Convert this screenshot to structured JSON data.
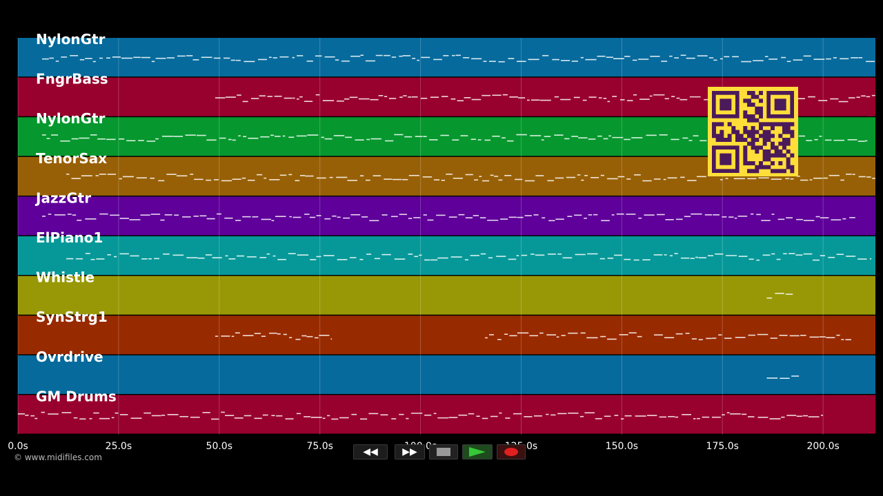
{
  "tracks": [
    {
      "name": "NylonGtr",
      "color": "#066a9c"
    },
    {
      "name": "FngrBass",
      "color": "#98002e"
    },
    {
      "name": "NylonGtr",
      "color": "#06982e"
    },
    {
      "name": "TenorSax",
      "color": "#986006"
    },
    {
      "name": "JazzGtr",
      "color": "#5e0099"
    },
    {
      "name": "ElPiano1",
      "color": "#069898"
    },
    {
      "name": "Whistle",
      "color": "#989806"
    },
    {
      "name": "SynStrg1",
      "color": "#982a00"
    },
    {
      "name": "Ovrdrive",
      "color": "#066a9c"
    },
    {
      "name": "GM Drums",
      "color": "#98002e"
    }
  ],
  "timeline": {
    "ticks": [
      "0.0s",
      "25.0s",
      "50.0s",
      "75.0s",
      "100.0s",
      "125.0s",
      "150.0s",
      "175.0s",
      "200.0s"
    ],
    "tick_seconds": [
      0,
      25,
      50,
      75,
      100,
      125,
      150,
      175,
      200
    ],
    "end_seconds": 213
  },
  "notes_activity": [
    [
      [
        6,
        213
      ]
    ],
    [
      [
        49,
        213
      ]
    ],
    [
      [
        6,
        211
      ]
    ],
    [
      [
        12,
        213
      ]
    ],
    [
      [
        6,
        208
      ]
    ],
    [
      [
        12,
        212
      ]
    ],
    [
      [
        186,
        193
      ]
    ],
    [
      [
        49,
        78
      ],
      [
        116,
        155
      ],
      [
        158,
        207
      ]
    ],
    [
      [
        186,
        194
      ]
    ],
    [
      [
        0,
        200
      ]
    ]
  ],
  "footer": {
    "copyright": "© www.midifiles.com"
  },
  "transport": {
    "rewind_label": "◀◀",
    "forward_label": "▶▶",
    "stop_icon": "stop-icon",
    "play_icon": "play-icon",
    "record_icon": "record-icon"
  },
  "qr": {
    "label": "qr-code"
  }
}
